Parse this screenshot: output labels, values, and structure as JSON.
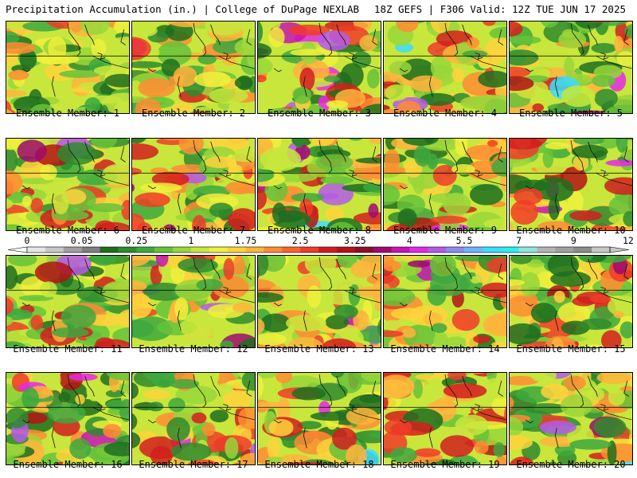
{
  "header": {
    "title": "Precipitation Accumulation (in.) | College of DuPage NEXLAB",
    "run_info": "18Z GEFS | F306 Valid: 12Z TUE JUN 17 2025"
  },
  "colorbar": {
    "labels": [
      "0",
      "0.05",
      "0.25",
      "1",
      "1.75",
      "2.5",
      "3.25",
      "4",
      "5.5",
      "7",
      "9",
      "12"
    ],
    "colors": [
      "#e6e6e6",
      "#c8c8c8",
      "#a0a0a0",
      "#808080",
      "#1e6e1e",
      "#2e8b2e",
      "#3ea83e",
      "#66c23a",
      "#99d63a",
      "#c8e63c",
      "#f0f03c",
      "#ffd23c",
      "#ffb43c",
      "#ff8c32",
      "#ff6428",
      "#f03c28",
      "#d21e1e",
      "#b41414",
      "#8c0f28",
      "#a00a6e",
      "#c814b4",
      "#e628e6",
      "#b45ae6",
      "#8c8cf0",
      "#6eb4ff",
      "#3cdcff",
      "#28f0f0",
      "#8ce6dc",
      "#b4b4b4",
      "#a0a0a0",
      "#8c8c8c",
      "#c8c8c8"
    ]
  },
  "members": [
    {
      "caption": "Ensemble Member: 1"
    },
    {
      "caption": "Ensemble Member: 2"
    },
    {
      "caption": "Ensemble Member: 3"
    },
    {
      "caption": "Ensemble Member: 4"
    },
    {
      "caption": "Ensemble Member: 5"
    },
    {
      "caption": "Ensemble Member: 6"
    },
    {
      "caption": "Ensemble Member: 7"
    },
    {
      "caption": "Ensemble Member: 8"
    },
    {
      "caption": "Ensemble Member: 9"
    },
    {
      "caption": "Ensemble Member: 10"
    },
    {
      "caption": "Ensemble Member: 11"
    },
    {
      "caption": "Ensemble Member: 12"
    },
    {
      "caption": "Ensemble Member: 13"
    },
    {
      "caption": "Ensemble Member: 14"
    },
    {
      "caption": "Ensemble Member: 15"
    },
    {
      "caption": "Ensemble Member: 16"
    },
    {
      "caption": "Ensemble Member: 17"
    },
    {
      "caption": "Ensemble Member: 18"
    },
    {
      "caption": "Ensemble Member: 19"
    },
    {
      "caption": "Ensemble Member: 20"
    }
  ]
}
